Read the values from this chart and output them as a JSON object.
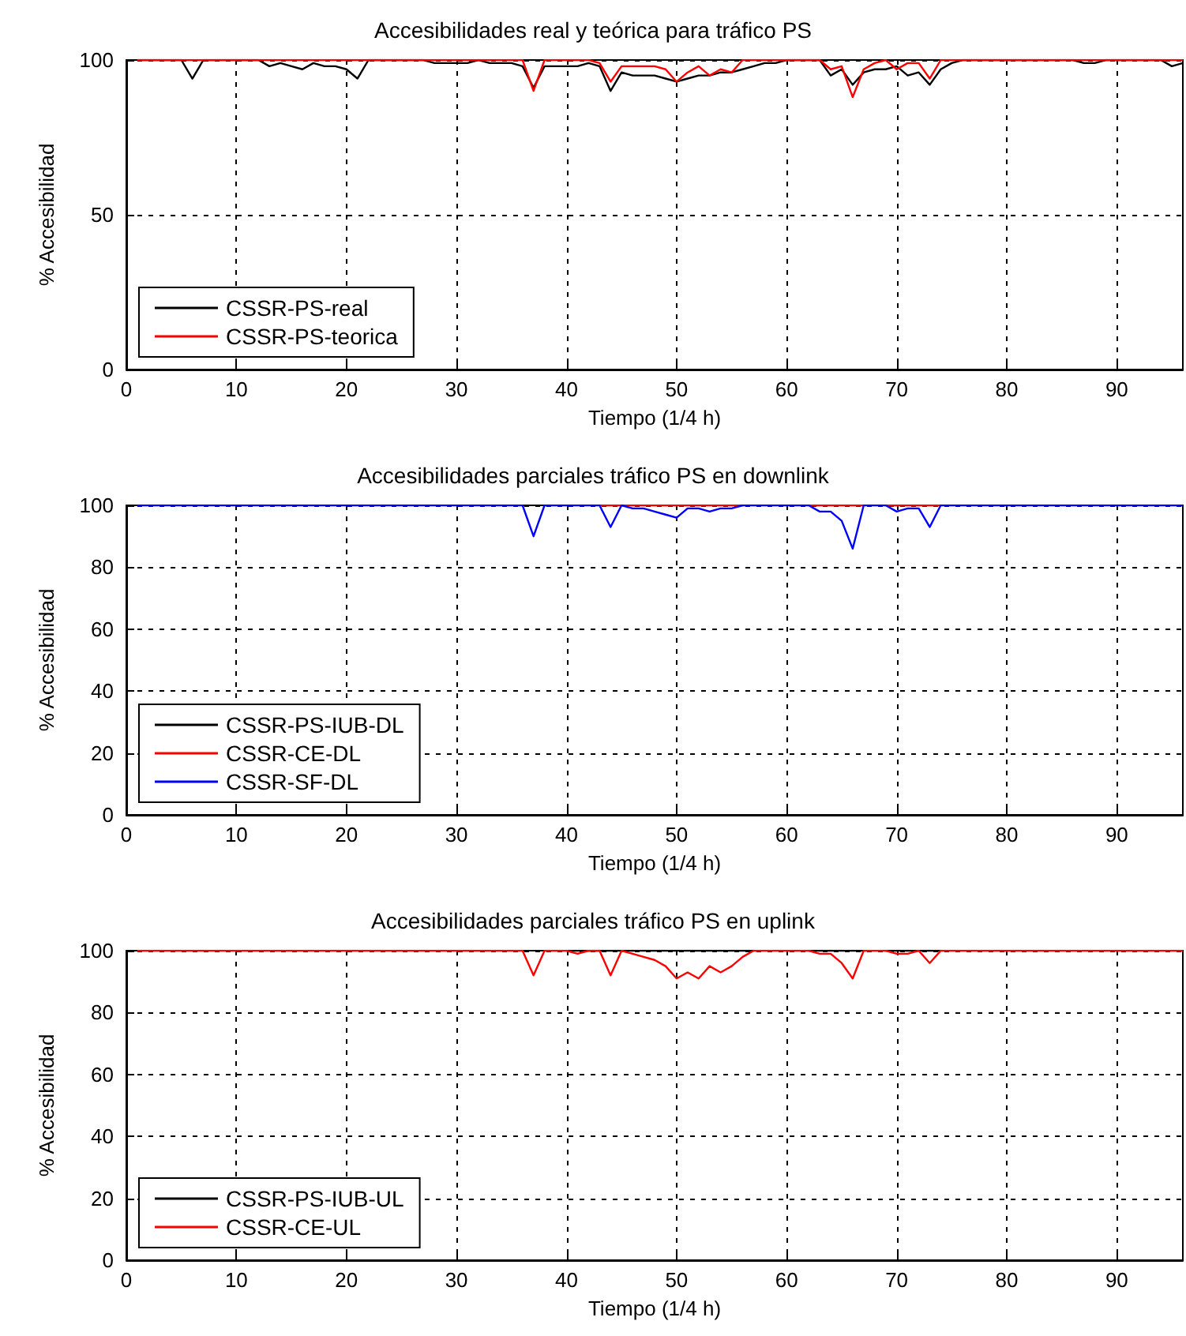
{
  "chart_data": [
    {
      "type": "line",
      "title": "Accesibilidades real y teórica para tráfico PS",
      "xlabel": "Tiempo (1/4 h)",
      "ylabel": "% Accesibilidad",
      "xlim": [
        0,
        96
      ],
      "xticks": [
        0,
        10,
        20,
        30,
        40,
        50,
        60,
        70,
        80,
        90
      ],
      "ylim": [
        0,
        100
      ],
      "yticks": [
        0,
        50,
        100
      ],
      "grid": true,
      "legend": "bottom left",
      "x": [
        1,
        2,
        3,
        4,
        5,
        6,
        7,
        8,
        9,
        10,
        11,
        12,
        13,
        14,
        15,
        16,
        17,
        18,
        19,
        20,
        21,
        22,
        23,
        24,
        25,
        26,
        27,
        28,
        29,
        30,
        31,
        32,
        33,
        34,
        35,
        36,
        37,
        38,
        39,
        40,
        41,
        42,
        43,
        44,
        45,
        46,
        47,
        48,
        49,
        50,
        51,
        52,
        53,
        54,
        55,
        56,
        57,
        58,
        59,
        60,
        61,
        62,
        63,
        64,
        65,
        66,
        67,
        68,
        69,
        70,
        71,
        72,
        73,
        74,
        75,
        76,
        77,
        78,
        79,
        80,
        81,
        82,
        83,
        84,
        85,
        86,
        87,
        88,
        89,
        90,
        91,
        92,
        93,
        94,
        95,
        96
      ],
      "series": [
        {
          "name": "CSSR-PS-real",
          "color": "#000000",
          "values": [
            100,
            100,
            100,
            100,
            100,
            94,
            100,
            100,
            100,
            100,
            100,
            100,
            98,
            99,
            98,
            97,
            99,
            98,
            98,
            97,
            94,
            100,
            100,
            100,
            100,
            100,
            100,
            99,
            99,
            99,
            99,
            100,
            99,
            99,
            99,
            98,
            91,
            98,
            98,
            98,
            98,
            99,
            98,
            90,
            96,
            95,
            95,
            95,
            94,
            93,
            94,
            95,
            95,
            96,
            96,
            97,
            98,
            99,
            99,
            100,
            100,
            100,
            100,
            95,
            97,
            92,
            96,
            97,
            97,
            98,
            95,
            96,
            92,
            97,
            99,
            100,
            100,
            100,
            100,
            100,
            100,
            100,
            100,
            100,
            100,
            100,
            99,
            99,
            100,
            100,
            100,
            100,
            100,
            100,
            98,
            99
          ]
        },
        {
          "name": "CSSR-PS-teorica",
          "color": "#ff0000",
          "values": [
            100,
            100,
            100,
            100,
            100,
            100,
            100,
            100,
            100,
            100,
            100,
            100,
            100,
            100,
            100,
            100,
            100,
            100,
            100,
            100,
            100,
            100,
            100,
            100,
            100,
            100,
            100,
            100,
            100,
            100,
            100,
            100,
            100,
            100,
            100,
            100,
            90,
            100,
            100,
            100,
            100,
            100,
            99,
            93,
            98,
            98,
            98,
            98,
            97,
            93,
            96,
            98,
            95,
            97,
            96,
            100,
            100,
            100,
            100,
            100,
            100,
            100,
            100,
            97,
            98,
            88,
            97,
            99,
            100,
            97,
            99,
            99,
            94,
            100,
            100,
            100,
            100,
            100,
            100,
            100,
            100,
            100,
            100,
            100,
            100,
            100,
            100,
            100,
            100,
            100,
            100,
            100,
            100,
            100,
            100,
            100
          ]
        }
      ]
    },
    {
      "type": "line",
      "title": "Accesibilidades parciales tráfico PS en downlink",
      "xlabel": "Tiempo (1/4 h)",
      "ylabel": "% Accesibilidad",
      "xlim": [
        0,
        96
      ],
      "xticks": [
        0,
        10,
        20,
        30,
        40,
        50,
        60,
        70,
        80,
        90
      ],
      "ylim": [
        0,
        100
      ],
      "yticks": [
        0,
        20,
        40,
        60,
        80,
        100
      ],
      "grid": true,
      "legend": "bottom left",
      "x": [
        1,
        2,
        3,
        4,
        5,
        6,
        7,
        8,
        9,
        10,
        11,
        12,
        13,
        14,
        15,
        16,
        17,
        18,
        19,
        20,
        21,
        22,
        23,
        24,
        25,
        26,
        27,
        28,
        29,
        30,
        31,
        32,
        33,
        34,
        35,
        36,
        37,
        38,
        39,
        40,
        41,
        42,
        43,
        44,
        45,
        46,
        47,
        48,
        49,
        50,
        51,
        52,
        53,
        54,
        55,
        56,
        57,
        58,
        59,
        60,
        61,
        62,
        63,
        64,
        65,
        66,
        67,
        68,
        69,
        70,
        71,
        72,
        73,
        74,
        75,
        76,
        77,
        78,
        79,
        80,
        81,
        82,
        83,
        84,
        85,
        86,
        87,
        88,
        89,
        90,
        91,
        92,
        93,
        94,
        95,
        96
      ],
      "series": [
        {
          "name": "CSSR-PS-IUB-DL",
          "color": "#000000",
          "values": [
            null,
            null,
            null,
            null,
            null,
            null,
            null,
            null,
            null,
            null,
            null,
            null,
            null,
            null,
            null,
            null,
            null,
            null,
            null,
            null,
            null,
            null,
            null,
            null,
            null,
            null,
            null,
            null,
            null,
            null,
            null,
            null,
            null,
            null,
            null,
            null,
            null,
            null,
            null,
            null,
            null,
            null,
            null,
            null,
            null,
            null,
            null,
            null,
            null,
            null,
            null,
            null,
            null,
            null,
            null,
            null,
            null,
            null,
            null,
            null,
            null,
            null,
            null,
            null,
            null,
            null,
            null,
            null,
            null,
            null,
            null,
            null,
            null,
            null,
            null,
            null,
            null,
            null,
            null,
            null,
            null,
            null,
            null,
            null,
            null,
            null,
            null,
            null,
            null,
            null,
            null,
            null,
            null,
            null,
            null,
            null
          ]
        },
        {
          "name": "CSSR-CE-DL",
          "color": "#ff0000",
          "values": [
            null,
            null,
            null,
            null,
            null,
            null,
            null,
            null,
            null,
            null,
            null,
            null,
            null,
            null,
            null,
            null,
            null,
            null,
            null,
            null,
            null,
            null,
            null,
            null,
            null,
            null,
            null,
            null,
            null,
            null,
            null,
            null,
            null,
            null,
            null,
            null,
            null,
            null,
            null,
            null,
            null,
            null,
            100,
            100,
            100,
            100,
            100,
            100,
            100,
            100,
            100,
            100,
            100,
            100,
            100,
            100,
            null,
            null,
            null,
            null,
            null,
            100,
            100,
            100,
            100,
            100,
            100,
            null,
            100,
            100,
            100,
            100,
            100,
            100,
            null,
            null,
            null,
            null,
            null,
            null,
            null,
            null,
            null,
            null,
            null,
            null,
            null,
            null,
            null,
            null,
            null,
            null,
            null,
            null,
            null,
            null
          ]
        },
        {
          "name": "CSSR-SF-DL",
          "color": "#0000ff",
          "values": [
            100,
            100,
            100,
            100,
            100,
            100,
            100,
            100,
            100,
            100,
            100,
            100,
            100,
            100,
            100,
            100,
            100,
            100,
            100,
            100,
            100,
            100,
            100,
            100,
            100,
            100,
            100,
            100,
            100,
            100,
            100,
            100,
            100,
            100,
            100,
            100,
            90,
            100,
            100,
            100,
            100,
            100,
            100,
            93,
            100,
            99,
            99,
            98,
            97,
            96,
            99,
            99,
            98,
            99,
            99,
            100,
            100,
            100,
            100,
            100,
            100,
            100,
            98,
            98,
            95,
            86,
            100,
            100,
            100,
            98,
            99,
            99,
            93,
            100,
            100,
            100,
            100,
            100,
            100,
            100,
            100,
            100,
            100,
            100,
            100,
            100,
            100,
            100,
            100,
            100,
            100,
            100,
            100,
            100,
            100,
            100
          ]
        }
      ]
    },
    {
      "type": "line",
      "title": "Accesibilidades parciales tráfico PS en uplink",
      "xlabel": "Tiempo (1/4 h)",
      "ylabel": "% Accesibilidad",
      "xlim": [
        0,
        96
      ],
      "xticks": [
        0,
        10,
        20,
        30,
        40,
        50,
        60,
        70,
        80,
        90
      ],
      "ylim": [
        0,
        100
      ],
      "yticks": [
        0,
        20,
        40,
        60,
        80,
        100
      ],
      "grid": true,
      "legend": "bottom left",
      "x": [
        1,
        2,
        3,
        4,
        5,
        6,
        7,
        8,
        9,
        10,
        11,
        12,
        13,
        14,
        15,
        16,
        17,
        18,
        19,
        20,
        21,
        22,
        23,
        24,
        25,
        26,
        27,
        28,
        29,
        30,
        31,
        32,
        33,
        34,
        35,
        36,
        37,
        38,
        39,
        40,
        41,
        42,
        43,
        44,
        45,
        46,
        47,
        48,
        49,
        50,
        51,
        52,
        53,
        54,
        55,
        56,
        57,
        58,
        59,
        60,
        61,
        62,
        63,
        64,
        65,
        66,
        67,
        68,
        69,
        70,
        71,
        72,
        73,
        74,
        75,
        76,
        77,
        78,
        79,
        80,
        81,
        82,
        83,
        84,
        85,
        86,
        87,
        88,
        89,
        90,
        91,
        92,
        93,
        94,
        95,
        96
      ],
      "series": [
        {
          "name": "CSSR-PS-IUB-UL",
          "color": "#000000",
          "values": [
            null,
            null,
            null,
            null,
            null,
            null,
            null,
            null,
            null,
            null,
            null,
            null,
            null,
            null,
            null,
            null,
            null,
            null,
            null,
            null,
            null,
            null,
            null,
            null,
            null,
            null,
            null,
            null,
            null,
            null,
            null,
            null,
            null,
            null,
            null,
            null,
            null,
            null,
            null,
            100,
            100,
            100,
            100,
            100,
            100,
            100,
            100,
            100,
            100,
            100,
            100,
            100,
            100,
            100,
            100,
            100,
            100,
            null,
            null,
            null,
            null,
            100,
            100,
            100,
            100,
            100,
            100,
            null,
            100,
            100,
            100,
            100,
            100,
            100,
            null,
            null,
            null,
            null,
            null,
            null,
            null,
            null,
            null,
            null,
            null,
            null,
            null,
            null,
            null,
            null,
            null,
            null,
            null,
            null,
            null,
            null
          ]
        },
        {
          "name": "CSSR-CE-UL",
          "color": "#ff0000",
          "values": [
            100,
            100,
            100,
            100,
            100,
            100,
            100,
            100,
            100,
            100,
            100,
            100,
            100,
            100,
            100,
            100,
            100,
            100,
            100,
            100,
            100,
            100,
            100,
            100,
            100,
            100,
            100,
            100,
            100,
            100,
            100,
            100,
            100,
            100,
            100,
            100,
            92,
            100,
            100,
            100,
            99,
            100,
            100,
            92,
            100,
            99,
            98,
            97,
            95,
            91,
            93,
            91,
            95,
            93,
            95,
            98,
            100,
            100,
            100,
            100,
            100,
            100,
            99,
            99,
            96,
            91,
            100,
            100,
            100,
            99,
            99,
            100,
            96,
            100,
            100,
            100,
            100,
            100,
            100,
            100,
            100,
            100,
            100,
            100,
            100,
            100,
            100,
            100,
            100,
            100,
            100,
            100,
            100,
            100,
            100,
            100
          ]
        }
      ]
    }
  ]
}
